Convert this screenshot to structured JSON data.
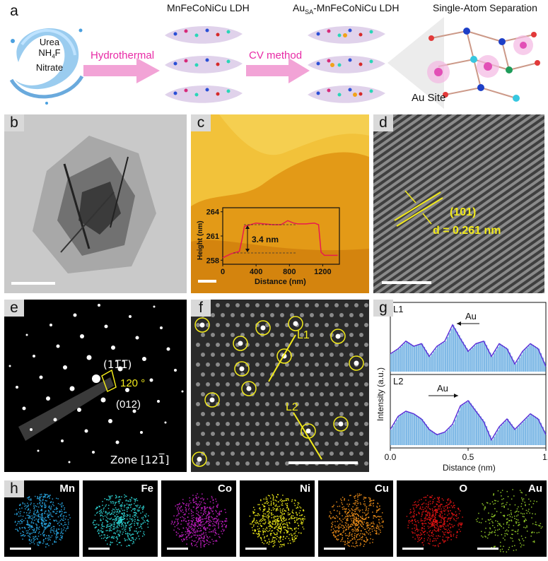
{
  "panel_a": {
    "label": "a",
    "solution_words": [
      "Urea",
      "NH",
      "4",
      "F",
      "Nitrate"
    ],
    "step1": "Hydrothermal",
    "step2": "CV method",
    "title1": "MnFeCoNiCu LDH",
    "title2_prefix": "Au",
    "title2_sub": "SA",
    "title2_suffix": "-MnFeCoNiCu LDH",
    "title3": "Single-Atom Separation",
    "au_site": "Au Site"
  },
  "panel_b": {
    "label": "b"
  },
  "panel_c": {
    "label": "c",
    "inset_ylabel": "Height (nm)",
    "inset_xlabel": "Distance (nm)",
    "yticks": [
      "264",
      "261",
      "258"
    ],
    "xticks": [
      "0",
      "400",
      "800",
      "1200"
    ],
    "step_label": "3.4 nm"
  },
  "panel_d": {
    "label": "d",
    "plane": "(101)",
    "spacing": "d = 0.261 nm"
  },
  "panel_e": {
    "label": "e",
    "spot1": "(11̅1̅)",
    "spot2": "(012)",
    "angle": "120 °",
    "zone": "Zone [121̅]"
  },
  "panel_f": {
    "label": "f",
    "line1": "L1",
    "line2": "L2"
  },
  "panel_g": {
    "label": "g",
    "ylabel": "Intensity (a.u.)",
    "xlabel": "Distance (nm)",
    "xticks": [
      "0.0",
      "0.5",
      "1."
    ],
    "l1_label": "L1",
    "l2_label": "L2",
    "au_label": "Au"
  },
  "panel_h": {
    "label": "h",
    "elements": [
      {
        "name": "Mn",
        "color": "#29a9e6"
      },
      {
        "name": "Fe",
        "color": "#2fd6d6"
      },
      {
        "name": "Co",
        "color": "#c71fc7"
      },
      {
        "name": "Ni",
        "color": "#f2ee1a"
      },
      {
        "name": "Cu",
        "color": "#f2901a"
      },
      {
        "name": "O",
        "color": "#e81414"
      },
      {
        "name": "Au",
        "color": "#9ad62b"
      }
    ]
  },
  "chart_data": [
    {
      "type": "line",
      "panel": "c-inset",
      "xlabel": "Distance (nm)",
      "ylabel": "Height (nm)",
      "xlim": [
        0,
        1400
      ],
      "ylim": [
        257.5,
        264.5
      ],
      "annotation": "3.4 nm",
      "x": [
        0,
        100,
        200,
        230,
        260,
        300,
        400,
        500,
        600,
        700,
        780,
        850,
        900,
        1000,
        1100,
        1150,
        1180,
        1220,
        1300,
        1380
      ],
      "y": [
        258.3,
        258.8,
        259.1,
        260.5,
        262.2,
        262.3,
        262.6,
        262.5,
        262.4,
        262.4,
        262.9,
        262.6,
        262.5,
        262.5,
        262.6,
        262.4,
        259.0,
        258.6,
        258.6,
        258.6
      ]
    },
    {
      "type": "area",
      "panel": "g",
      "xlabel": "Distance (nm)",
      "ylabel": "Intensity (a.u.)",
      "xlim": [
        0,
        1.0
      ],
      "series": [
        {
          "name": "L1",
          "x": [
            0,
            0.05,
            0.1,
            0.15,
            0.2,
            0.25,
            0.3,
            0.35,
            0.4,
            0.45,
            0.5,
            0.55,
            0.6,
            0.65,
            0.7,
            0.75,
            0.8,
            0.85,
            0.9,
            0.95,
            1.0
          ],
          "y": [
            0.35,
            0.45,
            0.6,
            0.5,
            0.55,
            0.3,
            0.5,
            0.6,
            0.92,
            0.65,
            0.4,
            0.55,
            0.6,
            0.3,
            0.55,
            0.45,
            0.15,
            0.4,
            0.55,
            0.45,
            0.1
          ]
        },
        {
          "name": "L2",
          "x": [
            0,
            0.05,
            0.1,
            0.15,
            0.2,
            0.25,
            0.3,
            0.35,
            0.4,
            0.45,
            0.5,
            0.55,
            0.6,
            0.65,
            0.7,
            0.75,
            0.8,
            0.85,
            0.9,
            0.95,
            1.0
          ],
          "y": [
            0.3,
            0.55,
            0.65,
            0.6,
            0.5,
            0.3,
            0.2,
            0.25,
            0.4,
            0.75,
            0.85,
            0.65,
            0.45,
            0.1,
            0.35,
            0.5,
            0.3,
            0.45,
            0.6,
            0.5,
            0.2
          ]
        }
      ]
    }
  ]
}
